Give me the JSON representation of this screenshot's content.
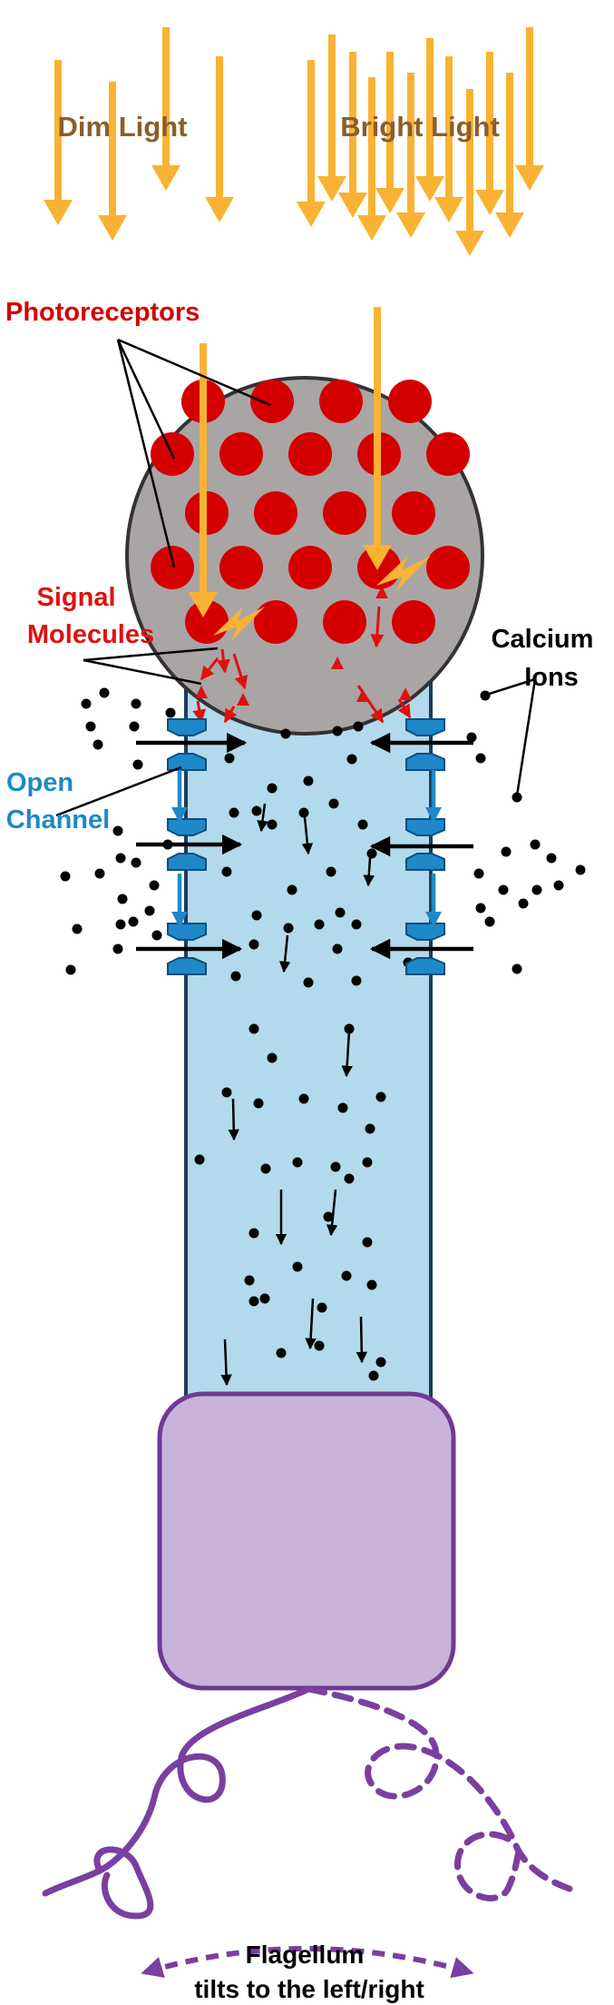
{
  "labels": {
    "dim_light": "Dim Light",
    "bright_light": "Bright Light",
    "photoreceptors": "Photoreceptors",
    "signal_line1": "Signal",
    "signal_line2": "Molecules",
    "calcium_line1": "Calcium",
    "calcium_line2": "Ions",
    "open_line1": "Open",
    "open_line2": "Channel",
    "flagellum_line1": "Flagellum",
    "flagellum_line2": "tilts to the left/right"
  },
  "colors": {
    "light_arrow": "#f9b233",
    "light_label": "#8b5e2b",
    "photoreceptor": "#d40000",
    "eyespot": "#a9a5a4",
    "cell_body": "#b3d9ec",
    "channel": "#1e88c8",
    "signal_label": "#e01010",
    "open_label": "#1e88c8",
    "flagellum": "#7a3fa0",
    "base_body": "#c9b3d9"
  }
}
